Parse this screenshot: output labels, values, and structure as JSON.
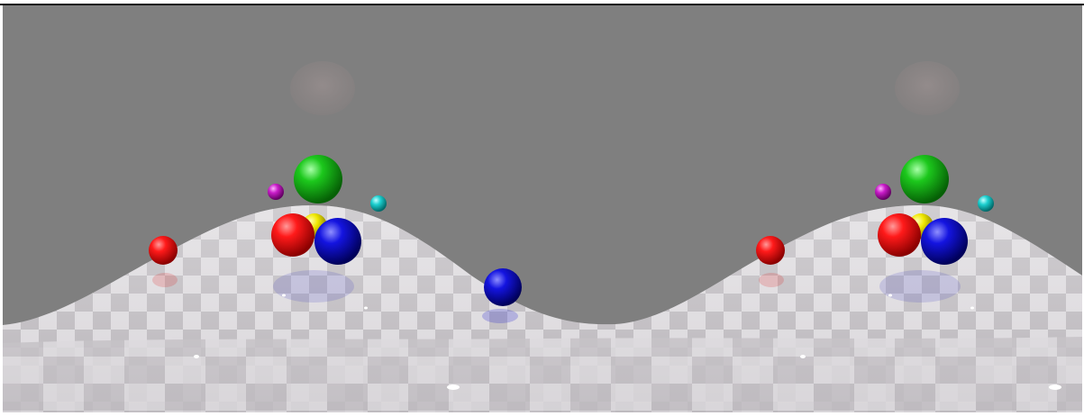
{
  "image": {
    "kind": "stereo-panorama-render",
    "description_visible": false,
    "background_color": "#7f7f7f",
    "floor_colors": {
      "light": "#d9d6da",
      "dark": "#b7b3b8"
    },
    "sphere_colors": {
      "red": "#e01010",
      "green": "#12b012",
      "blue": "#1010d0",
      "yellow": "#e8e000",
      "magenta": "#c018c0",
      "cyan": "#18c8c8"
    },
    "view_count": 2
  }
}
